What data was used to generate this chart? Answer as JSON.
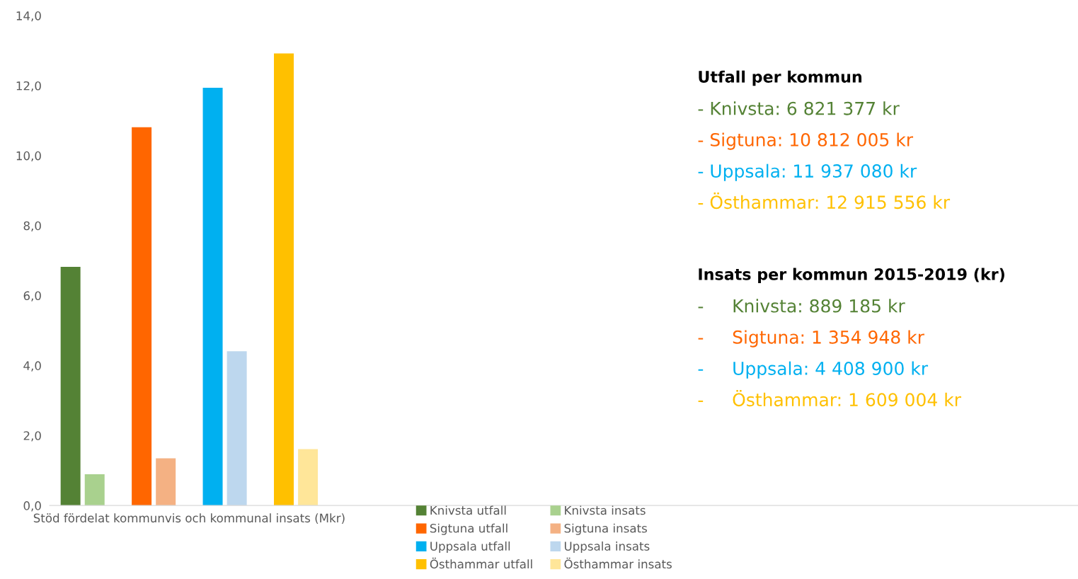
{
  "chart_data": {
    "type": "bar",
    "categories": [
      "Stöd fördelat kommunvis och kommunal insats (Mkr)"
    ],
    "series": [
      {
        "name": "Knivsta utfall",
        "color": "#548235",
        "values": [
          6.82
        ]
      },
      {
        "name": "Knivsta insats",
        "color": "#a9d18e",
        "values": [
          0.89
        ]
      },
      {
        "name": "Sigtuna utfall",
        "color": "#ff6600",
        "values": [
          10.81
        ]
      },
      {
        "name": "Sigtuna insats",
        "color": "#f4b183",
        "values": [
          1.35
        ]
      },
      {
        "name": "Uppsala utfall",
        "color": "#00b0f0",
        "values": [
          11.94
        ]
      },
      {
        "name": "Uppsala insats",
        "color": "#bdd7ee",
        "values": [
          4.41
        ]
      },
      {
        "name": "Östhammar utfall",
        "color": "#ffc000",
        "values": [
          12.92
        ]
      },
      {
        "name": "Östhammar insats",
        "color": "#ffe699",
        "values": [
          1.61
        ]
      }
    ],
    "ylim": [
      0,
      14
    ],
    "yticks": [
      {
        "value": 0,
        "label": "0,0"
      },
      {
        "value": 2,
        "label": "2,0"
      },
      {
        "value": 4,
        "label": "4,0"
      },
      {
        "value": 6,
        "label": "6,0"
      },
      {
        "value": 8,
        "label": "8,0"
      },
      {
        "value": 10,
        "label": "10,0"
      },
      {
        "value": 12,
        "label": "12,0"
      },
      {
        "value": 14,
        "label": "14,0"
      }
    ],
    "grid": false,
    "legend": "bottom",
    "annotations": [
      "Utfall per kommun",
      "- Knivsta: 6 821 377 kr",
      "- Sigtuna: 10 812 005 kr",
      "- Uppsala: 11 937 080 kr",
      "- Östhammar: 12 915 556 kr",
      "Insats per kommun 2015-2019 (kr)",
      "-     Knivsta: 889 185 kr",
      "-     Sigtuna: 1 354 948 kr",
      "-     Uppsala: 4 408 900 kr",
      "-     Östhammar: 1 609 004 kr"
    ]
  }
}
